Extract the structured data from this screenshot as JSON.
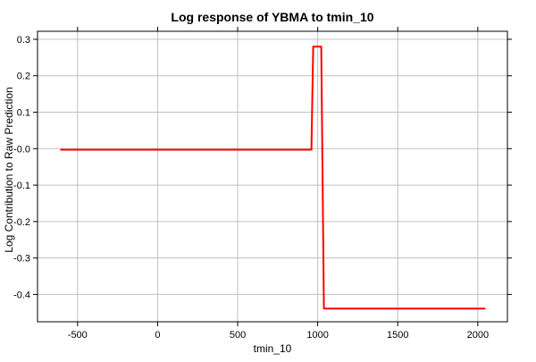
{
  "chart_data": {
    "type": "line",
    "title": "Log response of YBMA to tmin_10",
    "xlabel": "tmin_10",
    "ylabel": "Log Contribution to Raw Prediction",
    "xlim": [
      -750,
      2185
    ],
    "ylim": [
      -0.475,
      0.322
    ],
    "xticks": [
      -500,
      0,
      500,
      1000,
      1500,
      2000
    ],
    "xtick_labels": [
      "-500",
      "0",
      "500",
      "1000",
      "1500",
      "2000"
    ],
    "yticks": [
      0.3,
      0.2,
      0.1,
      0.0,
      -0.1,
      -0.2,
      -0.3,
      -0.4
    ],
    "ytick_labels": [
      "0.3",
      "0.2",
      "0.1",
      "-0.0",
      "-0.1",
      "-0.2",
      "-0.3",
      "-0.4"
    ],
    "grid": true,
    "series": [
      {
        "color": "#ff0000",
        "x": [
          -605,
          961,
          972,
          1022,
          1039,
          2045
        ],
        "y": [
          -0.003,
          -0.003,
          0.28,
          0.28,
          -0.439,
          -0.439
        ]
      }
    ]
  }
}
